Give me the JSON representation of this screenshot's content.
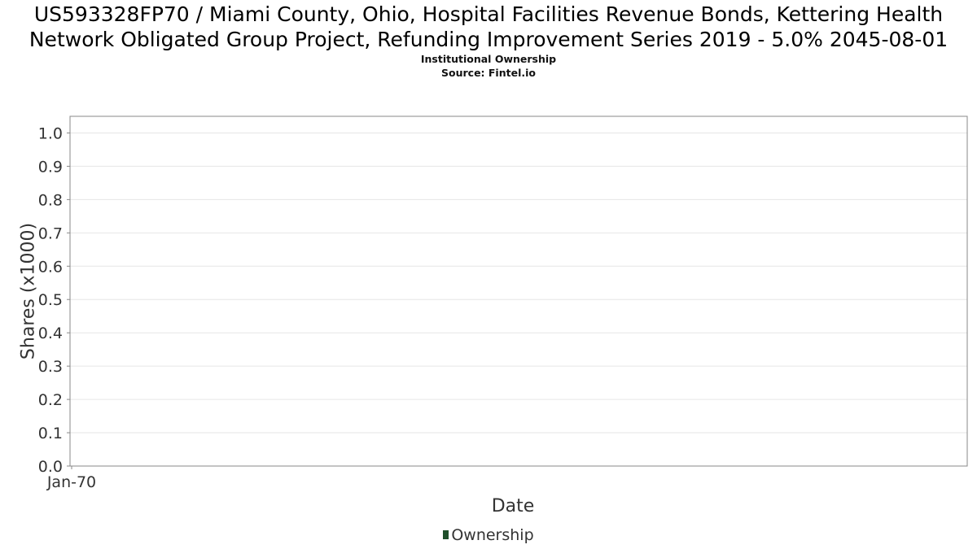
{
  "colors": {
    "background": "#ffffff",
    "plot_border": "#888888",
    "grid": "#e6e6e6",
    "text": "#333333",
    "ownership_series": "#1f4f2a"
  },
  "chart_data": {
    "type": "line",
    "title": "US593328FP70 / Miami County, Ohio, Hospital Facilities Revenue Bonds, Kettering Health Network Obligated Group Project, Refunding Improvement Series 2019 - 5.0% 2045-08-01",
    "subtitle_line1": "Institutional Ownership",
    "subtitle_line2": "Source: Fintel.io",
    "xlabel": "Date",
    "ylabel": "Shares (x1000)",
    "x_tick_labels": [
      "Jan-70"
    ],
    "y_ticks": [
      0.0,
      0.1,
      0.2,
      0.3,
      0.4,
      0.5,
      0.6,
      0.7,
      0.8,
      0.9,
      1.0
    ],
    "y_tick_labels": [
      "0.0",
      "0.1",
      "0.2",
      "0.3",
      "0.4",
      "0.5",
      "0.6",
      "0.7",
      "0.8",
      "0.9",
      "1.0"
    ],
    "ylim": [
      0,
      1.05
    ],
    "grid": true,
    "legend_position": "bottom-center",
    "series": [
      {
        "name": "Ownership",
        "x": [],
        "values": []
      }
    ]
  }
}
